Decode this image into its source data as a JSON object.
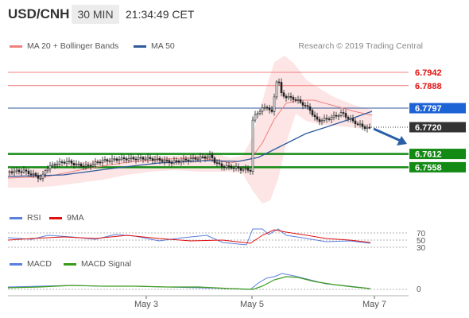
{
  "header": {
    "symbol": "USD/CNH",
    "timeframe": "30 MIN",
    "time": "21:34:49 CET"
  },
  "legend": {
    "bollinger": "MA 20 + Bollinger Bands",
    "ma50": "MA 50",
    "credit": "Research © 2019 Trading Central",
    "rsi": "RSI",
    "rsi_ma": "9MA",
    "macd": "MACD",
    "macd_signal": "MACD Signal"
  },
  "colors": {
    "bollinger": "#f08080",
    "ma50": "#2e5a9c",
    "support": "#138a13",
    "current_price_bg": "#333333",
    "ma50_tag_bg": "#1e63d6",
    "rsi": "#5b7fdc",
    "rsi_ma": "#e01010",
    "macd": "#5b7fdc",
    "macd_signal": "#3a9a1a"
  },
  "chart_data": {
    "type": "candlestick",
    "x_ticks": [
      "May 3",
      "May 5",
      "May 7"
    ],
    "price_levels": {
      "resistance_1": 6.7942,
      "resistance_2": 6.7888,
      "ma50": 6.7797,
      "current": 6.772,
      "support_1": 6.7612,
      "support_2": 6.7558
    },
    "price_labels": [
      "6.7942",
      "6.7888",
      "6.7797",
      "6.7720",
      "6.7612",
      "6.7558"
    ],
    "rsi": {
      "levels": [
        70,
        50,
        30
      ],
      "level_labels": [
        "70",
        "50",
        "30"
      ]
    },
    "macd": {
      "levels": [
        0
      ],
      "level_labels": [
        "0"
      ]
    }
  }
}
